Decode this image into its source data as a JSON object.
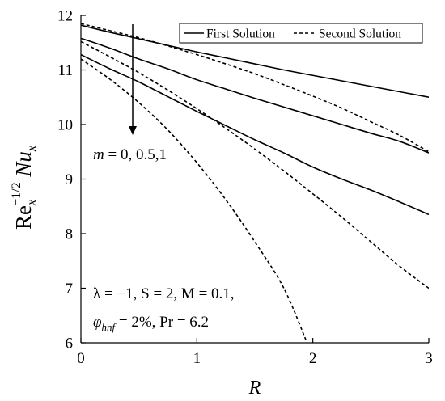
{
  "chart_data": {
    "type": "line",
    "xlim": [
      0,
      3
    ],
    "ylim": [
      6,
      12
    ],
    "x_ticks": [
      "0",
      "1",
      "2",
      "3"
    ],
    "y_ticks": [
      "6",
      "7",
      "8",
      "9",
      "10",
      "11",
      "12"
    ],
    "xlabel": "R",
    "ylabel": {
      "base": "Re",
      "sub1": "x",
      "sup": "−1/2",
      "mid": " Nu",
      "sub2": "x"
    },
    "legend": {
      "position": "top-right",
      "entries": [
        {
          "label": "First Solution",
          "style": "solid"
        },
        {
          "label": "Second Solution",
          "style": "dashed"
        }
      ]
    },
    "arrow_label": {
      "prefix": "m",
      "text": " = 0, 0.5,1"
    },
    "parameters": {
      "line1": "λ = −1, S = 2, M = 0.1,",
      "line2_sym": "φ",
      "line2_sub": "hnf",
      "line2_rest": " = 2%, Pr = 6.2"
    },
    "grid": false,
    "series": [
      {
        "m": 0,
        "solution": "first",
        "style": "solid",
        "x": [
          0,
          0.25,
          0.5,
          0.75,
          1,
          1.25,
          1.5,
          1.75,
          2,
          2.25,
          2.5,
          2.75,
          3
        ],
        "y": [
          11.82,
          11.69,
          11.57,
          11.45,
          11.33,
          11.22,
          11.11,
          11.0,
          10.9,
          10.8,
          10.7,
          10.6,
          10.5
        ]
      },
      {
        "m": 0.5,
        "solution": "first",
        "style": "solid",
        "x": [
          0,
          0.25,
          0.5,
          0.75,
          1,
          1.25,
          1.5,
          1.75,
          2,
          2.25,
          2.5,
          2.75,
          3
        ],
        "y": [
          11.58,
          11.4,
          11.2,
          11.02,
          10.82,
          10.65,
          10.48,
          10.32,
          10.16,
          10.0,
          9.84,
          9.69,
          9.48
        ]
      },
      {
        "m": 1,
        "solution": "first",
        "style": "solid",
        "x": [
          0,
          0.25,
          0.5,
          0.75,
          1,
          1.25,
          1.5,
          1.75,
          2,
          2.25,
          2.5,
          2.75,
          3
        ],
        "y": [
          11.28,
          11.02,
          10.78,
          10.51,
          10.24,
          9.98,
          9.72,
          9.48,
          9.22,
          9.0,
          8.8,
          8.58,
          8.35
        ]
      },
      {
        "m": 0,
        "solution": "second",
        "style": "dashed",
        "x": [
          0,
          0.25,
          0.5,
          0.75,
          1,
          1.25,
          1.5,
          1.75,
          2,
          2.25,
          2.5,
          2.75,
          3
        ],
        "y": [
          11.85,
          11.72,
          11.59,
          11.44,
          11.28,
          11.11,
          10.93,
          10.73,
          10.52,
          10.3,
          10.05,
          9.8,
          9.5
        ]
      },
      {
        "m": 0.5,
        "solution": "second",
        "style": "dashed",
        "x": [
          0,
          0.25,
          0.5,
          0.75,
          1,
          1.25,
          1.5,
          1.75,
          2,
          2.25,
          2.5,
          2.75,
          3
        ],
        "y": [
          11.52,
          11.24,
          10.95,
          10.63,
          10.29,
          9.93,
          9.55,
          9.15,
          8.73,
          8.3,
          7.85,
          7.4,
          7.0
        ]
      },
      {
        "m": 1,
        "solution": "second",
        "style": "dashed",
        "x": [
          0,
          0.25,
          0.5,
          0.75,
          1,
          1.25,
          1.5,
          1.75,
          1.95
        ],
        "y": [
          11.2,
          10.83,
          10.4,
          9.9,
          9.3,
          8.62,
          7.85,
          7.0,
          6.0
        ]
      }
    ]
  }
}
